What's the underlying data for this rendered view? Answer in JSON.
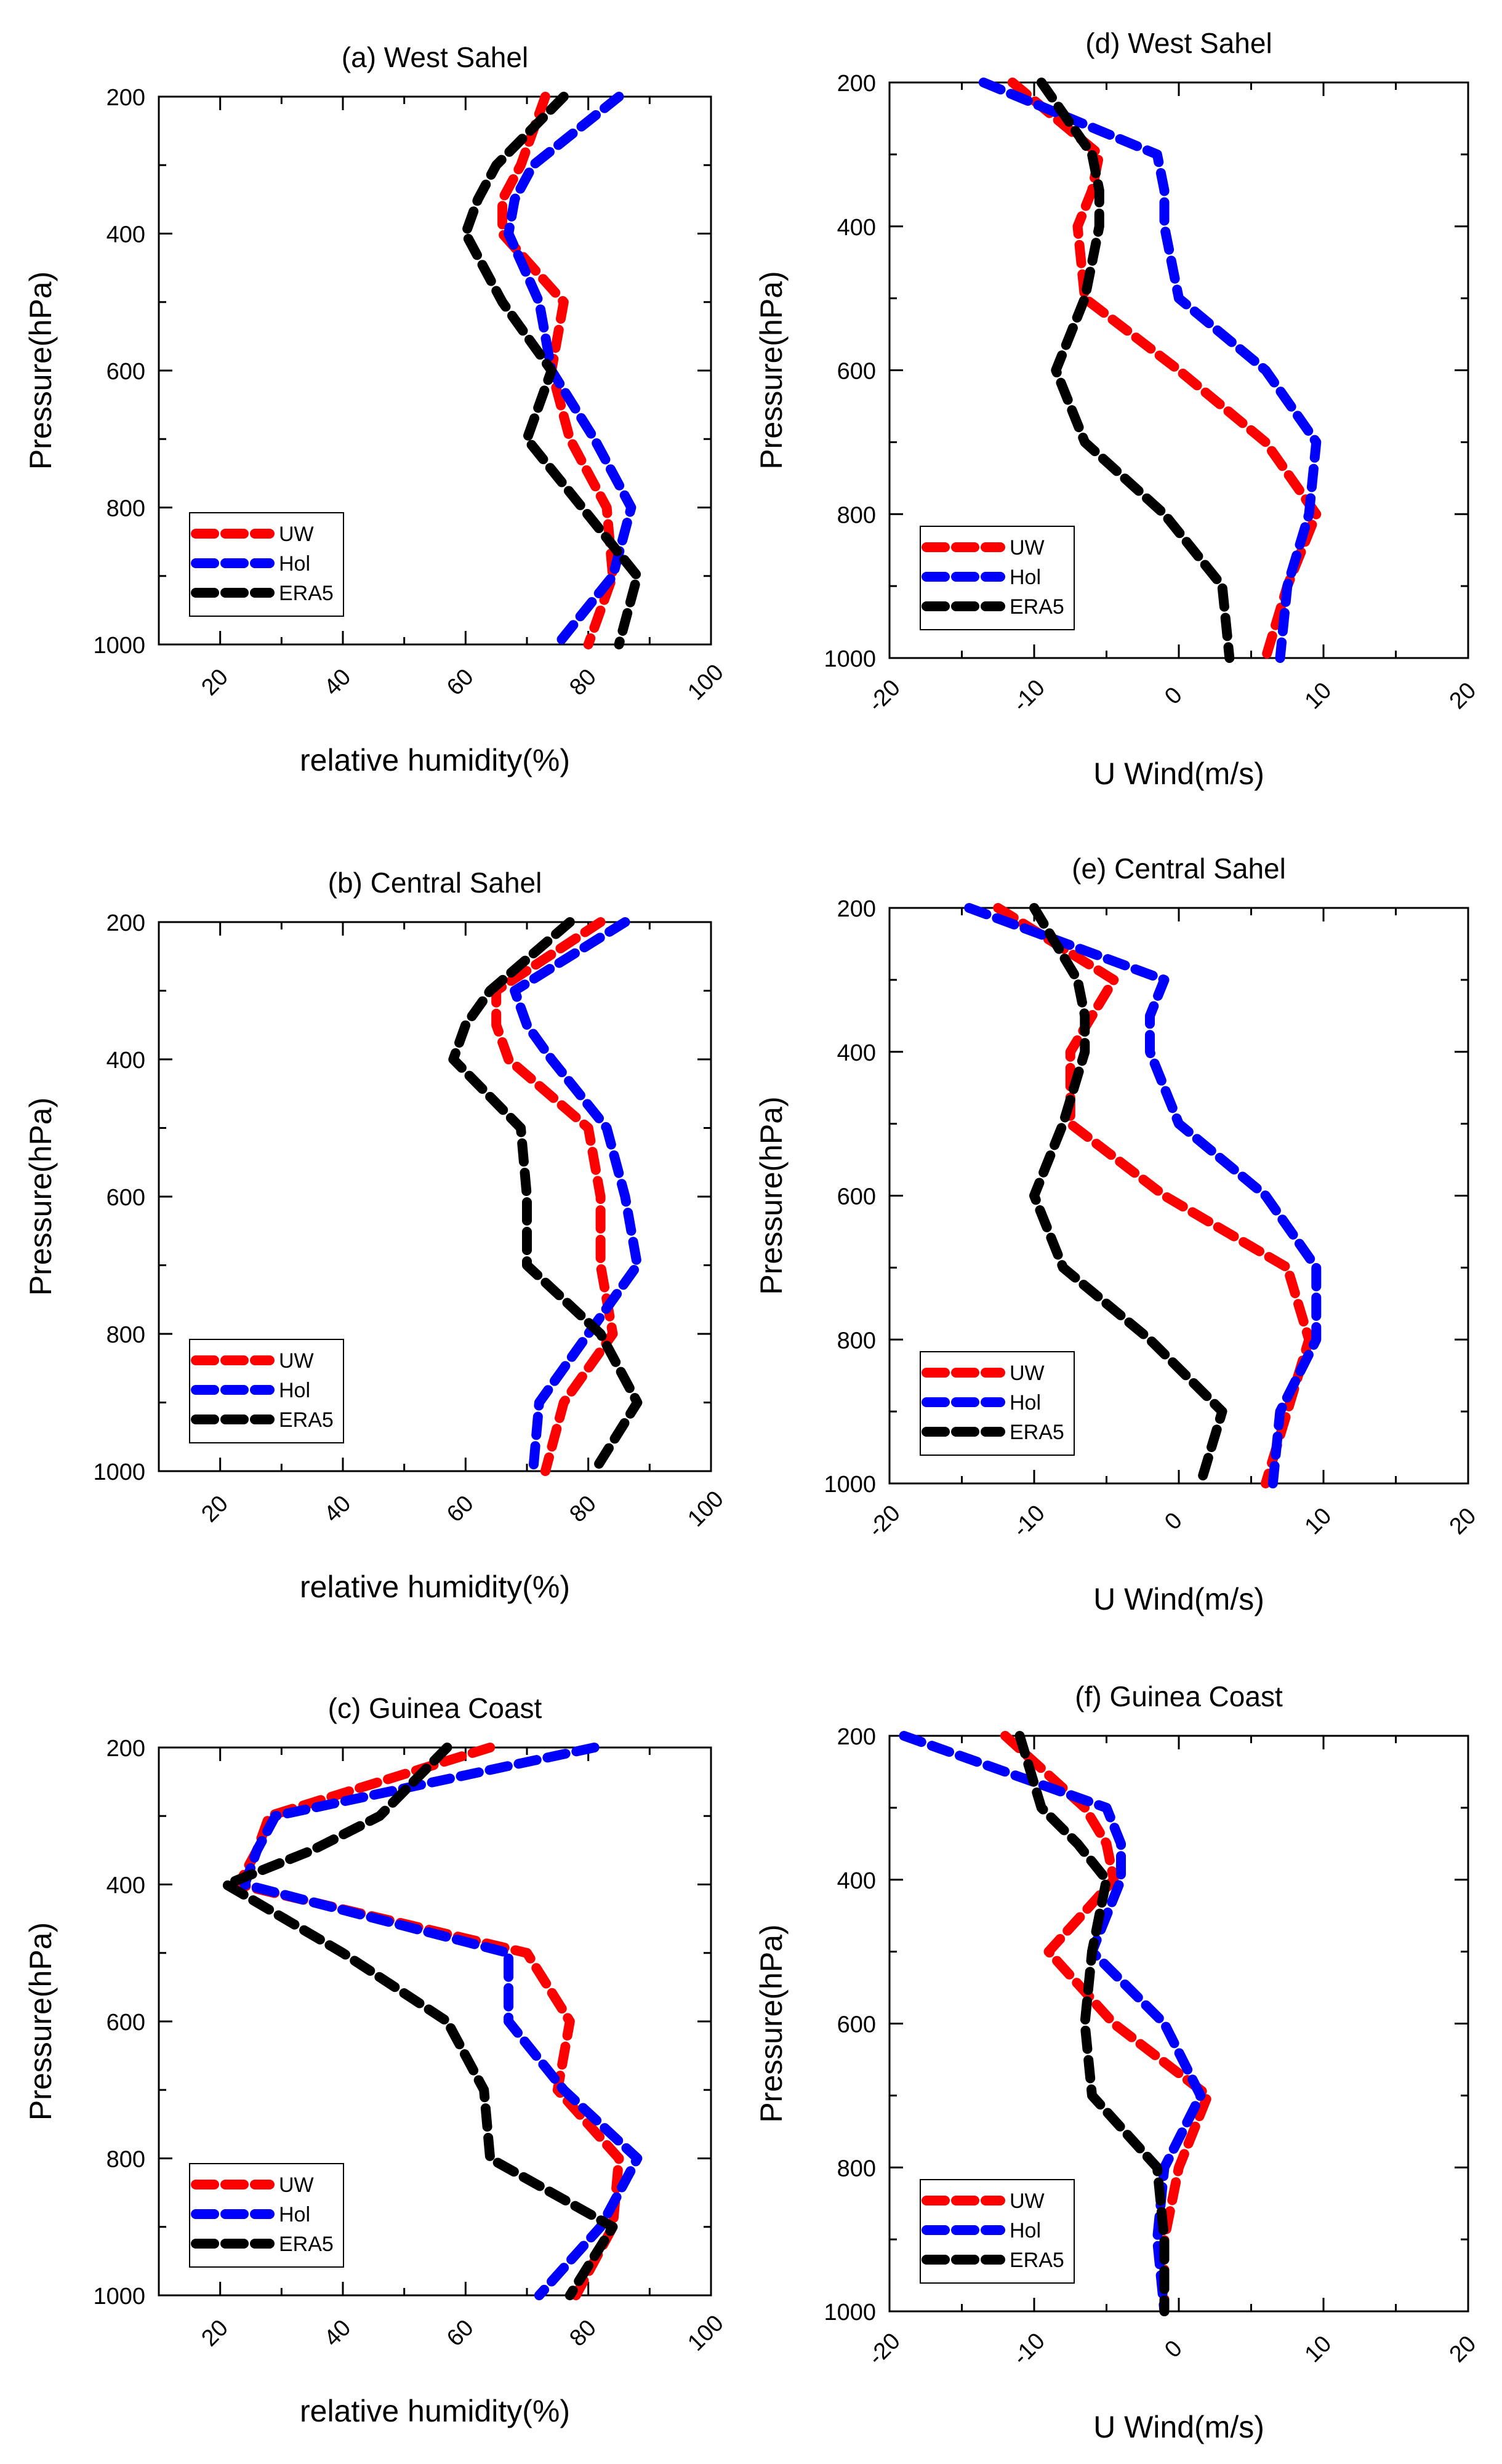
{
  "colors": {
    "UW": "#ff0000",
    "Hol": "#0000ff",
    "ERA5": "#000000"
  },
  "chart_data": [
    {
      "id": "a",
      "type": "line",
      "title": "(a) West  Sahel",
      "xlabel": "relative humidity(%)",
      "ylabel": "Pressure(hPa)",
      "xlim": [
        10,
        100
      ],
      "ylim": [
        1000,
        200
      ],
      "xticks": [
        "20",
        "40",
        "60",
        "80",
        "100"
      ],
      "yticks": [
        "200",
        "400",
        "600",
        "800",
        "1000"
      ],
      "grid": false,
      "legend_position": "bottom-left",
      "series": [
        {
          "name": "UW",
          "x": [
            73,
            69,
            66,
            66,
            76,
            74,
            77,
            83,
            84,
            80
          ],
          "y": [
            200,
            300,
            350,
            400,
            500,
            600,
            700,
            800,
            900,
            1000
          ]
        },
        {
          "name": "Hol",
          "x": [
            85,
            71,
            68,
            67,
            72,
            74,
            81,
            87,
            84,
            75
          ],
          "y": [
            200,
            300,
            350,
            400,
            500,
            600,
            700,
            800,
            900,
            1000
          ]
        },
        {
          "name": "ERA5",
          "x": [
            76,
            65,
            62,
            60,
            66,
            74,
            70,
            79,
            88,
            85
          ],
          "y": [
            200,
            300,
            350,
            400,
            500,
            600,
            700,
            800,
            900,
            1000
          ]
        }
      ]
    },
    {
      "id": "d",
      "type": "line",
      "title": "(d) West Sahel",
      "xlabel": "U Wind(m/s)",
      "ylabel": "Pressure(hPa)",
      "xlim": [
        -20,
        20
      ],
      "ylim": [
        1000,
        200
      ],
      "xticks": [
        "-20",
        "-10",
        "0",
        "10",
        "20"
      ],
      "yticks": [
        "200",
        "400",
        "600",
        "800",
        "1000"
      ],
      "grid": false,
      "legend_position": "bottom-left",
      "series": [
        {
          "name": "UW",
          "x": [
            -11.5,
            -5.5,
            -6,
            -7,
            -6.5,
            0,
            6,
            9.5,
            7.5,
            6
          ],
          "y": [
            200,
            300,
            350,
            400,
            500,
            600,
            700,
            800,
            900,
            1000
          ]
        },
        {
          "name": "Hol",
          "x": [
            -13.5,
            -1.5,
            -1,
            -1,
            0,
            6,
            9.5,
            9,
            7.5,
            7
          ],
          "y": [
            200,
            300,
            350,
            400,
            500,
            600,
            700,
            800,
            900,
            1000
          ]
        },
        {
          "name": "ERA5",
          "x": [
            -9.5,
            -6,
            -5.5,
            -5.5,
            -6.5,
            -8.5,
            -6.5,
            -1,
            3,
            3.5
          ],
          "y": [
            200,
            300,
            350,
            400,
            500,
            600,
            700,
            800,
            900,
            1000
          ]
        }
      ]
    },
    {
      "id": "b",
      "type": "line",
      "title": "(b) Central Sahel",
      "xlabel": "relative humidity(%)",
      "ylabel": "Pressure(hPa)",
      "xlim": [
        10,
        100
      ],
      "ylim": [
        1000,
        200
      ],
      "xticks": [
        "20",
        "40",
        "60",
        "80",
        "100"
      ],
      "yticks": [
        "200",
        "400",
        "600",
        "800",
        "1000"
      ],
      "grid": false,
      "legend_position": "bottom-left",
      "series": [
        {
          "name": "UW",
          "x": [
            82,
            65,
            65,
            67,
            80,
            82,
            82,
            84,
            76,
            73
          ],
          "y": [
            200,
            300,
            350,
            400,
            500,
            600,
            700,
            800,
            900,
            1000
          ]
        },
        {
          "name": "Hol",
          "x": [
            86,
            68,
            70,
            74,
            83,
            86,
            88,
            80,
            72,
            71
          ],
          "y": [
            200,
            300,
            350,
            400,
            500,
            600,
            700,
            800,
            900,
            1000
          ]
        },
        {
          "name": "ERA5",
          "x": [
            77,
            64,
            60,
            58,
            69,
            70,
            70,
            82,
            88,
            81
          ],
          "y": [
            200,
            300,
            350,
            400,
            500,
            600,
            700,
            800,
            900,
            1000
          ]
        }
      ]
    },
    {
      "id": "e",
      "type": "line",
      "title": "(e) Central Sahel",
      "xlabel": "U Wind(m/s)",
      "ylabel": "Pressure(hPa)",
      "xlim": [
        -20,
        20
      ],
      "ylim": [
        1000,
        200
      ],
      "xticks": [
        "-20",
        "-10",
        "0",
        "10",
        "20"
      ],
      "yticks": [
        "200",
        "400",
        "600",
        "800",
        "1000"
      ],
      "grid": false,
      "legend_position": "bottom-left",
      "series": [
        {
          "name": "UW",
          "x": [
            -12.5,
            -4.5,
            -6,
            -7.5,
            -7.5,
            -1,
            7.5,
            9,
            7.5,
            6
          ],
          "y": [
            200,
            300,
            350,
            400,
            500,
            600,
            700,
            800,
            900,
            1000
          ]
        },
        {
          "name": "Hol",
          "x": [
            -14.5,
            -1,
            -2,
            -2,
            0,
            6,
            9.5,
            9.5,
            7,
            6.5
          ],
          "y": [
            200,
            300,
            350,
            400,
            500,
            600,
            700,
            800,
            900,
            1000
          ]
        },
        {
          "name": "ERA5",
          "x": [
            -10,
            -7,
            -6.5,
            -6.5,
            -8,
            -10,
            -8,
            -2,
            3,
            1.5
          ],
          "y": [
            200,
            300,
            350,
            400,
            500,
            600,
            700,
            800,
            900,
            1000
          ]
        }
      ]
    },
    {
      "id": "c",
      "type": "line",
      "title": "(c) Guinea Coast",
      "xlabel": "relative humidity(%)",
      "ylabel": "Pressure(hPa)",
      "xlim": [
        10,
        100
      ],
      "ylim": [
        1000,
        200
      ],
      "xticks": [
        "20",
        "40",
        "60",
        "80",
        "100"
      ],
      "yticks": [
        "200",
        "400",
        "600",
        "800",
        "1000"
      ],
      "grid": false,
      "legend_position": "bottom-left",
      "series": [
        {
          "name": "UW",
          "x": [
            64,
            28,
            26,
            23,
            70,
            77,
            75,
            85,
            84,
            78
          ],
          "y": [
            200,
            300,
            350,
            400,
            500,
            600,
            700,
            800,
            900,
            1000
          ]
        },
        {
          "name": "Hol",
          "x": [
            81,
            29,
            26,
            24,
            67,
            67,
            76,
            88,
            82,
            72
          ],
          "y": [
            200,
            300,
            350,
            400,
            500,
            600,
            700,
            800,
            900,
            1000
          ]
        },
        {
          "name": "ERA5",
          "x": [
            57,
            46,
            35,
            21,
            40,
            57,
            63,
            64,
            84,
            77
          ],
          "y": [
            200,
            300,
            350,
            400,
            500,
            600,
            700,
            800,
            900,
            1000
          ]
        }
      ]
    },
    {
      "id": "f",
      "type": "line",
      "title": "(f) Guinea Coast",
      "xlabel": "U Wind(m/s)",
      "ylabel": "Pressure(hPa)",
      "xlim": [
        -20,
        20
      ],
      "ylim": [
        1000,
        200
      ],
      "xticks": [
        "-20",
        "-10",
        "0",
        "10",
        "20"
      ],
      "yticks": [
        "200",
        "400",
        "600",
        "800",
        "1000"
      ],
      "grid": false,
      "legend_position": "bottom-left",
      "series": [
        {
          "name": "UW",
          "x": [
            -12,
            -6.5,
            -5,
            -4.5,
            -9,
            -4.5,
            2,
            0,
            -1,
            -1
          ],
          "y": [
            200,
            300,
            350,
            400,
            500,
            600,
            700,
            800,
            900,
            1000
          ]
        },
        {
          "name": "Hol",
          "x": [
            -19,
            -5,
            -4,
            -4,
            -6,
            -1,
            1.5,
            -1,
            -1.5,
            -1
          ],
          "y": [
            200,
            300,
            350,
            400,
            500,
            600,
            700,
            800,
            900,
            1000
          ]
        },
        {
          "name": "ERA5",
          "x": [
            -11,
            -9.5,
            -7,
            -5,
            -6,
            -6.5,
            -6,
            -1.5,
            -1,
            -1
          ],
          "y": [
            200,
            300,
            350,
            400,
            500,
            600,
            700,
            800,
            900,
            1000
          ]
        }
      ]
    }
  ]
}
